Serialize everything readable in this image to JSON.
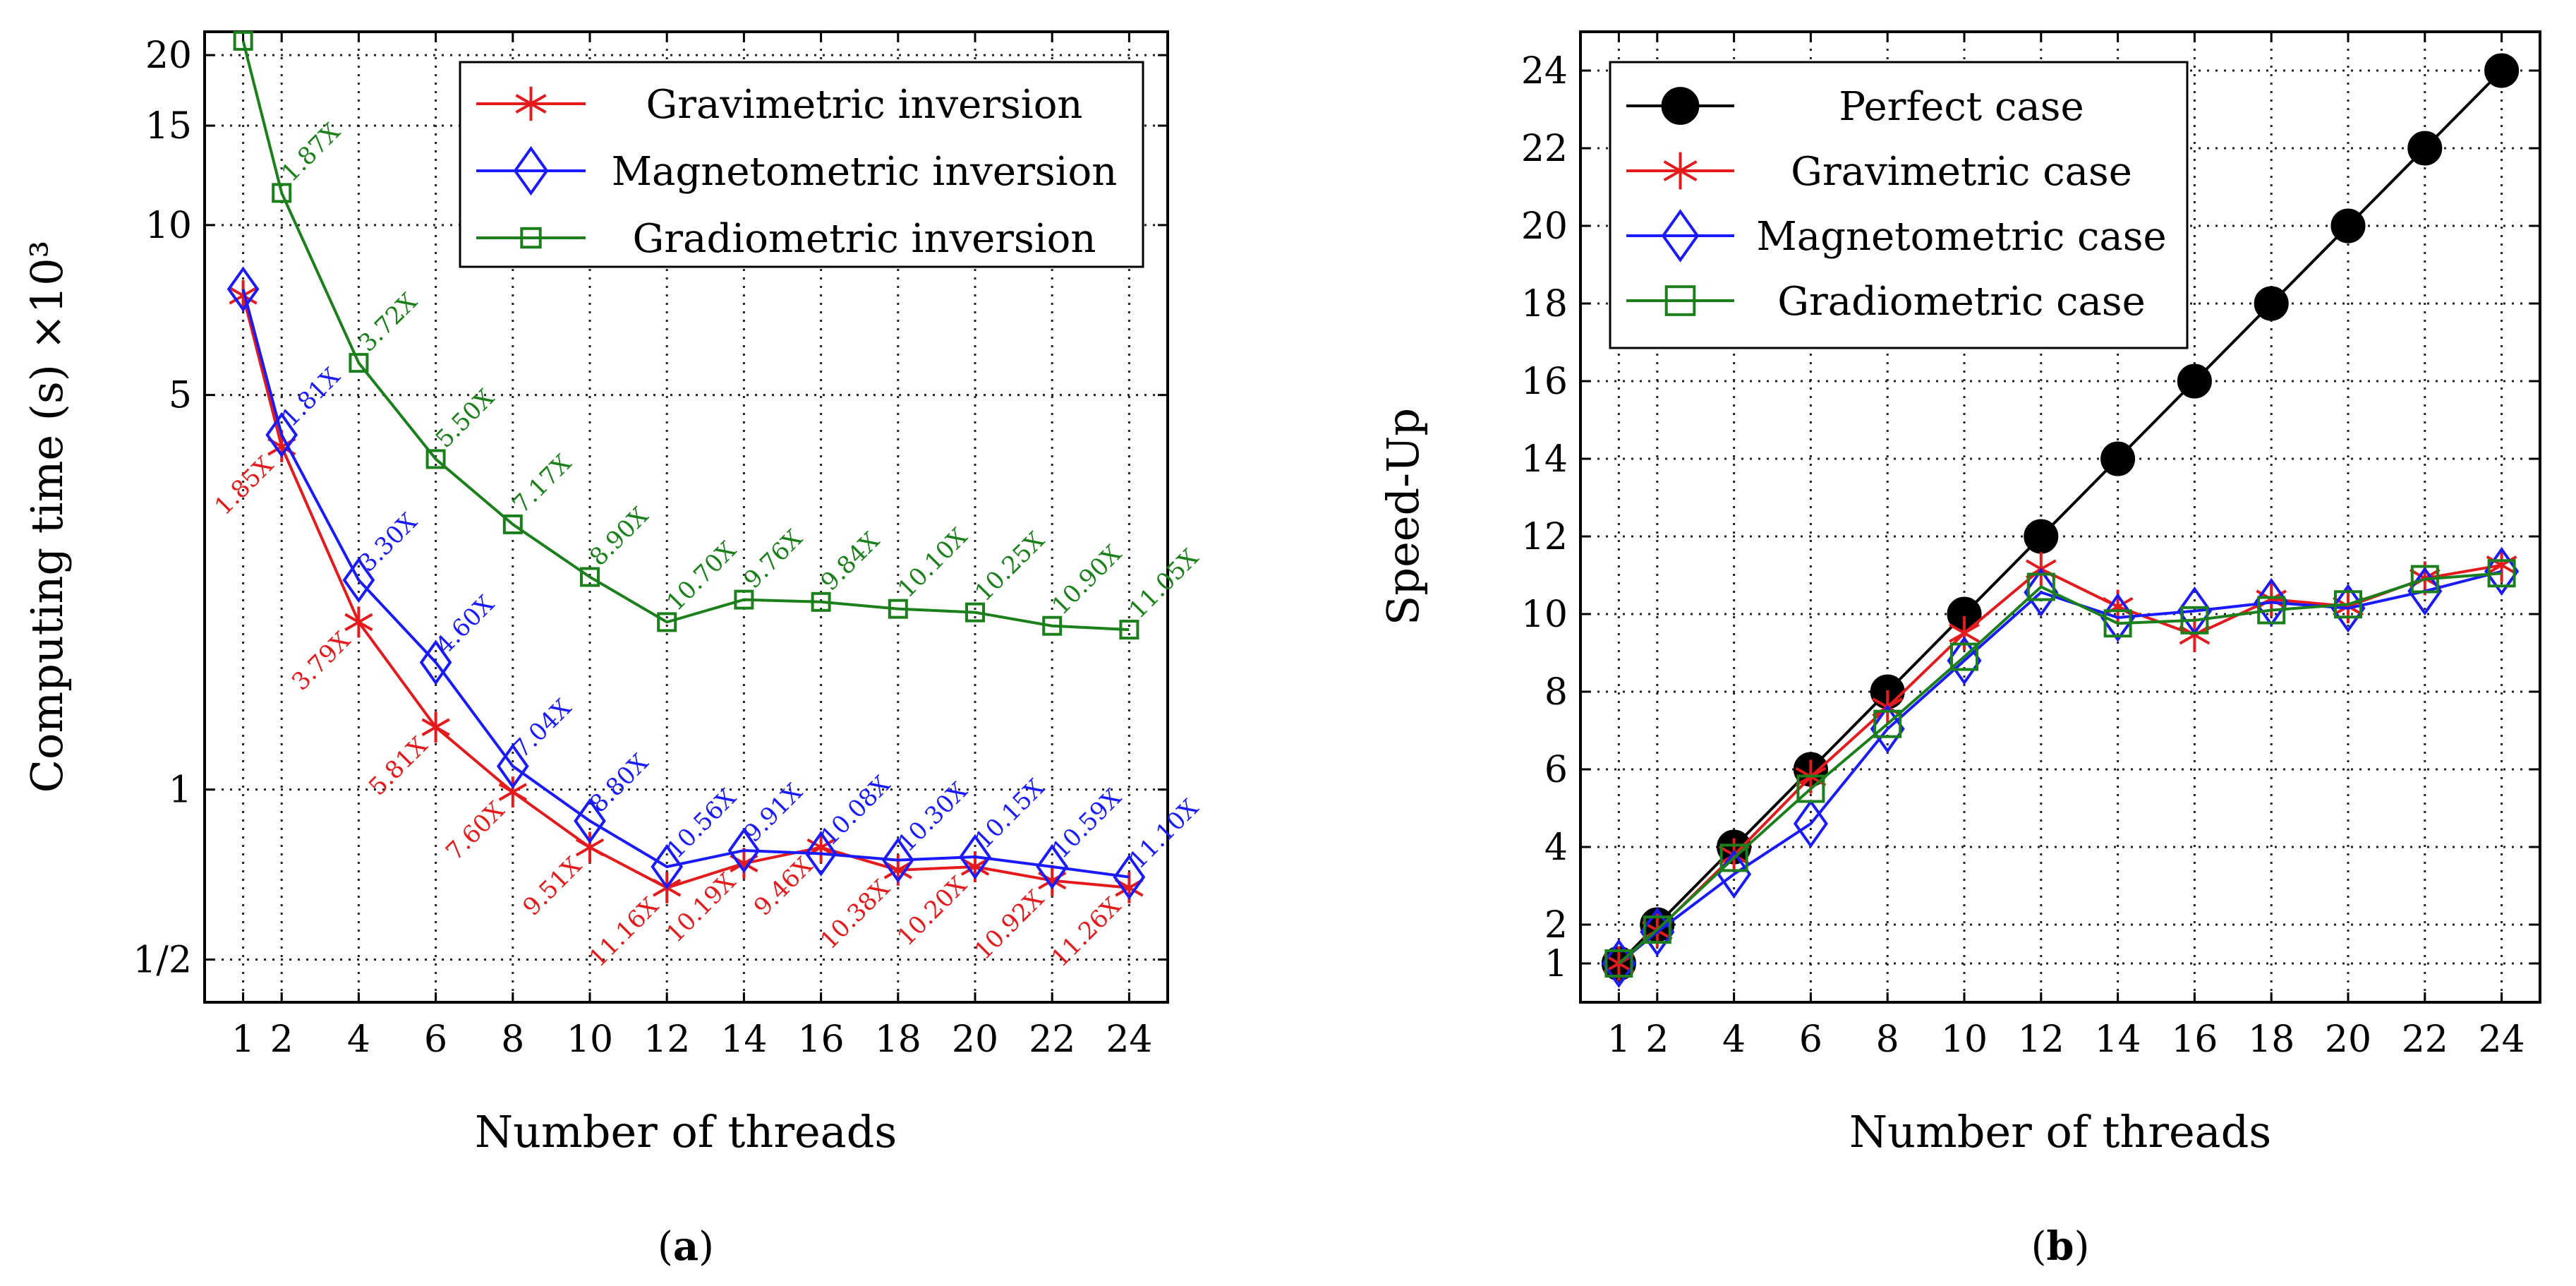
{
  "colors": {
    "red": "#e41a1c",
    "blue": "#1a1aff",
    "green": "#1b7f1b",
    "black": "#000000",
    "grid": "#222222"
  },
  "captions": [
    {
      "open": "(",
      "letter": "a",
      "close": ")"
    },
    {
      "open": "(",
      "letter": "b",
      "close": ")"
    }
  ],
  "chart_data": [
    {
      "type": "line",
      "yscale": "log",
      "xlabel": "Number of threads",
      "ylabel": "Computing time (s) ×10³",
      "x": [
        1,
        2,
        4,
        6,
        8,
        10,
        12,
        14,
        16,
        18,
        20,
        22,
        24
      ],
      "xticks": [
        "1",
        "2",
        "4",
        "6",
        "8",
        "10",
        "12",
        "14",
        "16",
        "18",
        "20",
        "22",
        "24"
      ],
      "xlim": [
        0,
        25
      ],
      "ylim": [
        0.42,
        22
      ],
      "yticks": [
        0.5,
        1,
        5,
        10,
        15,
        20
      ],
      "ytick_labels": [
        "1/2",
        "1",
        "5",
        "10",
        "15",
        "20"
      ],
      "legend_position": "top-right",
      "series": [
        {
          "name": "Gravimetric inversion",
          "color": "red",
          "marker": "asterisk",
          "values": [
            7.5,
            4.05,
            1.98,
            1.29,
            0.99,
            0.79,
            0.67,
            0.74,
            0.79,
            0.72,
            0.73,
            0.69,
            0.67
          ],
          "labels": [
            "",
            "1.85X",
            "3.79X",
            "5.81X",
            "7.60X",
            "9.51X",
            "11.16X",
            "10.19X",
            "9.46X",
            "10.38X",
            "10.20X",
            "10.92X",
            "11.26X"
          ]
        },
        {
          "name": "Magnetometric inversion",
          "color": "blue",
          "marker": "diamond",
          "values": [
            7.7,
            4.25,
            2.35,
            1.68,
            1.1,
            0.88,
            0.73,
            0.78,
            0.77,
            0.75,
            0.76,
            0.73,
            0.7
          ],
          "labels": [
            "",
            "1.81X",
            "3.30X",
            "4.60X",
            "7.04X",
            "8.80X",
            "10.56X",
            "9.91X",
            "10.08X",
            "10.30X",
            "10.15X",
            "10.59X",
            "11.10X"
          ]
        },
        {
          "name": "Gradiometric inversion",
          "color": "green",
          "marker": "square",
          "values": [
            21.2,
            11.4,
            5.7,
            3.85,
            2.95,
            2.38,
            1.98,
            2.17,
            2.15,
            2.09,
            2.06,
            1.95,
            1.92
          ],
          "labels": [
            "",
            "1.87X",
            "3.72X",
            "5.50X",
            "7.17X",
            "8.90X",
            "10.70X",
            "9.76X",
            "9.84X",
            "10.10X",
            "10.25X",
            "10.90X",
            "11.05X"
          ]
        }
      ]
    },
    {
      "type": "line",
      "xlabel": "Number of threads",
      "ylabel": "Speed-Up",
      "x": [
        1,
        2,
        4,
        6,
        8,
        10,
        12,
        14,
        16,
        18,
        20,
        22,
        24
      ],
      "xticks": [
        "1",
        "2",
        "4",
        "6",
        "8",
        "10",
        "12",
        "14",
        "16",
        "18",
        "20",
        "22",
        "24"
      ],
      "xlim": [
        0,
        25
      ],
      "ylim": [
        0,
        25
      ],
      "yticks": [
        1,
        2,
        4,
        6,
        8,
        10,
        12,
        14,
        16,
        18,
        20,
        22,
        24
      ],
      "ytick_labels": [
        "1",
        "2",
        "4",
        "6",
        "8",
        "10",
        "12",
        "14",
        "16",
        "18",
        "20",
        "22",
        "24"
      ],
      "legend_position": "top-left",
      "series": [
        {
          "name": "Perfect case",
          "color": "black",
          "marker": "filled-circle",
          "values": [
            1,
            2,
            4,
            6,
            8,
            10,
            12,
            14,
            16,
            18,
            20,
            22,
            24
          ]
        },
        {
          "name": "Gravimetric case",
          "color": "red",
          "marker": "asterisk",
          "values": [
            1,
            1.85,
            3.79,
            5.81,
            7.6,
            9.51,
            11.16,
            10.19,
            9.46,
            10.38,
            10.2,
            10.92,
            11.26
          ]
        },
        {
          "name": "Magnetometric case",
          "color": "blue",
          "marker": "diamond",
          "values": [
            1,
            1.81,
            3.3,
            4.6,
            7.04,
            8.8,
            10.56,
            9.91,
            10.08,
            10.3,
            10.15,
            10.59,
            11.1
          ]
        },
        {
          "name": "Gradiometric case",
          "color": "green",
          "marker": "square",
          "values": [
            1,
            1.87,
            3.72,
            5.5,
            7.17,
            8.9,
            10.7,
            9.76,
            9.84,
            10.1,
            10.25,
            10.9,
            11.05
          ]
        }
      ]
    }
  ]
}
